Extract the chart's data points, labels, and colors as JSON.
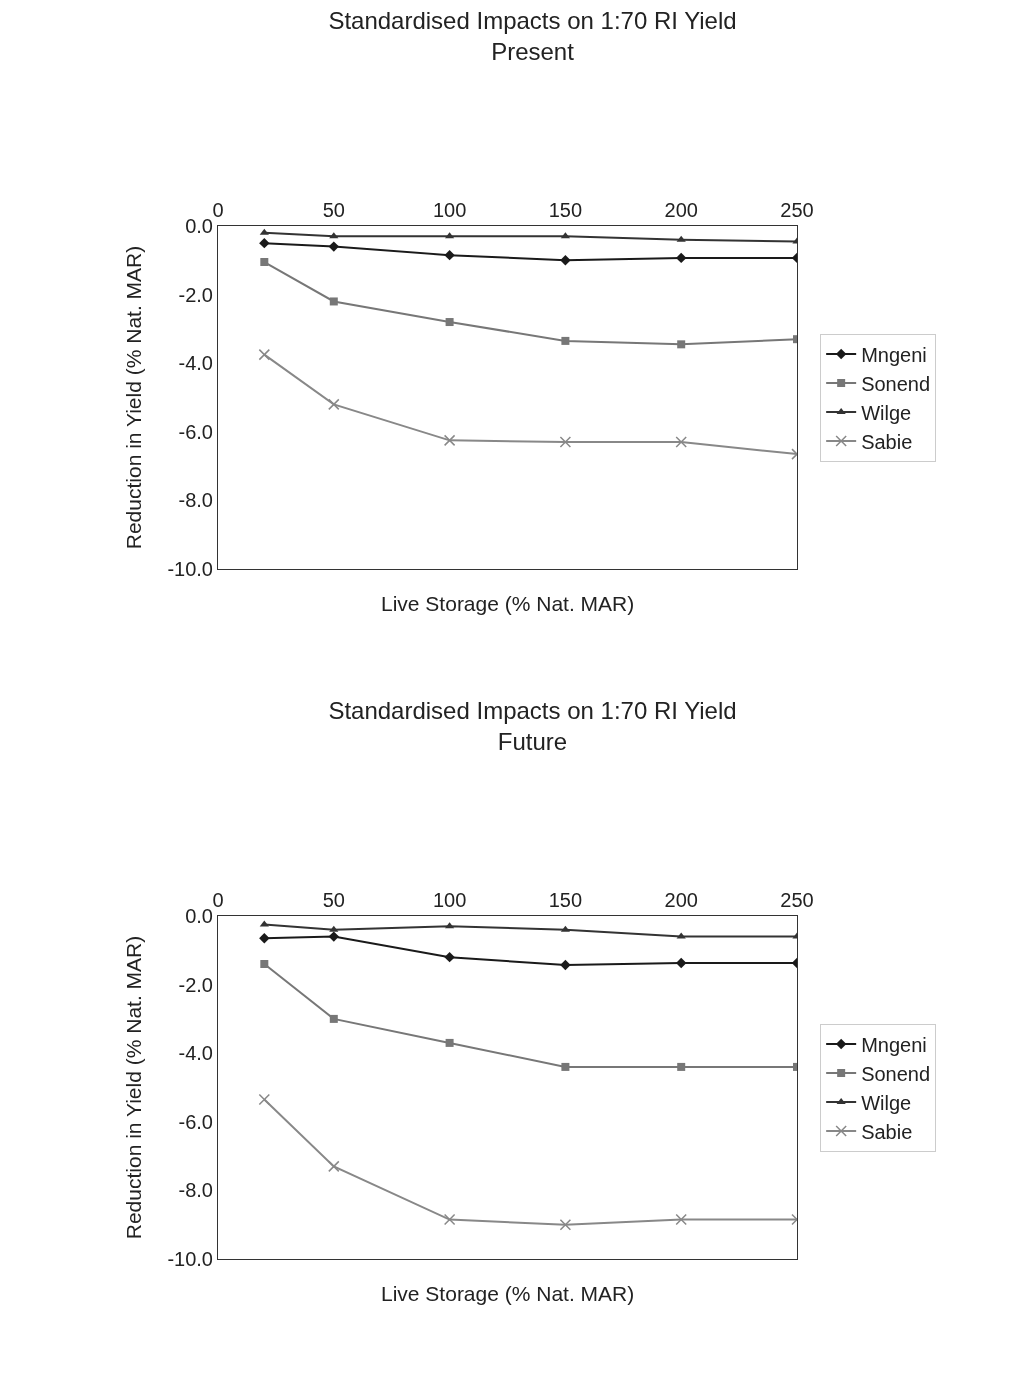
{
  "chart_data": [
    {
      "type": "line",
      "title": "Standardised Impacts on 1:70 RI Yield",
      "subtitle": "Present",
      "xlabel": "Live Storage (% Nat. MAR)",
      "ylabel": "Reduction in Yield (% Nat. MAR)",
      "x": [
        20,
        50,
        100,
        150,
        200,
        250
      ],
      "xlim": [
        0,
        250
      ],
      "xticks": [
        0,
        50,
        100,
        150,
        200,
        250
      ],
      "ylim": [
        -10,
        0
      ],
      "yticks": [
        {
          "value": 0,
          "label": "0.0"
        },
        {
          "value": -2,
          "label": "-2.0"
        },
        {
          "value": -4,
          "label": "-4.0"
        },
        {
          "value": -6,
          "label": "-6.0"
        },
        {
          "value": -8,
          "label": "-8.0"
        },
        {
          "value": -10,
          "label": "-10.0"
        }
      ],
      "grid": false,
      "legend": "right",
      "line_style": "solid",
      "series": [
        {
          "name": "Mngeni",
          "color": "#1a1a1a",
          "marker": "diamond",
          "values": [
            -0.5,
            -0.6,
            -0.85,
            -1.0,
            -0.93,
            -0.93
          ]
        },
        {
          "name": "Sonend",
          "color": "#777777",
          "marker": "square",
          "values": [
            -1.05,
            -2.2,
            -2.8,
            -3.35,
            -3.45,
            -3.3
          ]
        },
        {
          "name": "Wilge",
          "color": "#333333",
          "marker": "triangle",
          "values": [
            -0.2,
            -0.3,
            -0.3,
            -0.3,
            -0.4,
            -0.45
          ]
        },
        {
          "name": "Sabie",
          "color": "#888888",
          "marker": "cross",
          "values": [
            -3.75,
            -5.2,
            -6.25,
            -6.3,
            -6.3,
            -6.65
          ]
        }
      ]
    },
    {
      "type": "line",
      "title": "Standardised Impacts on 1:70 RI Yield",
      "subtitle": "Future",
      "xlabel": "Live Storage (% Nat. MAR)",
      "ylabel": "Reduction in Yield (% Nat. MAR)",
      "x": [
        20,
        50,
        100,
        150,
        200,
        250
      ],
      "xlim": [
        0,
        250
      ],
      "xticks": [
        0,
        50,
        100,
        150,
        200,
        250
      ],
      "ylim": [
        -10,
        0
      ],
      "yticks": [
        {
          "value": 0,
          "label": "0.0"
        },
        {
          "value": -2,
          "label": "-2.0"
        },
        {
          "value": -4,
          "label": "-4.0"
        },
        {
          "value": -6,
          "label": "-6.0"
        },
        {
          "value": -8,
          "label": "-8.0"
        },
        {
          "value": -10,
          "label": "-10.0"
        }
      ],
      "grid": false,
      "legend": "right",
      "line_style": "solid",
      "series": [
        {
          "name": "Mngeni",
          "color": "#1a1a1a",
          "marker": "diamond",
          "values": [
            -0.65,
            -0.6,
            -1.2,
            -1.43,
            -1.37,
            -1.37
          ]
        },
        {
          "name": "Sonend",
          "color": "#777777",
          "marker": "square",
          "values": [
            -1.4,
            -3.0,
            -3.7,
            -4.4,
            -4.4,
            -4.4
          ]
        },
        {
          "name": "Wilge",
          "color": "#333333",
          "marker": "triangle",
          "values": [
            -0.25,
            -0.4,
            -0.3,
            -0.4,
            -0.6,
            -0.6
          ]
        },
        {
          "name": "Sabie",
          "color": "#888888",
          "marker": "cross",
          "values": [
            -5.35,
            -7.3,
            -8.85,
            -9.0,
            -8.85,
            -8.85
          ]
        }
      ]
    }
  ]
}
